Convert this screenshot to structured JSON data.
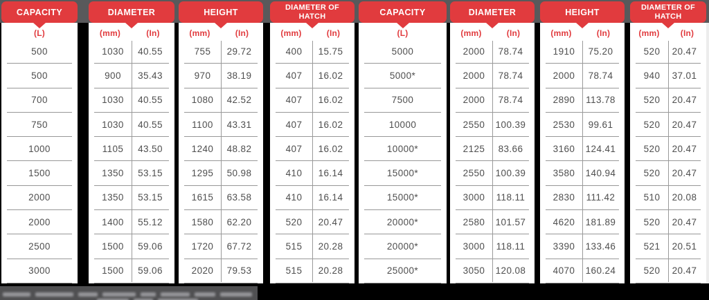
{
  "page": {
    "background_color": "#000000",
    "top_band_color": "#59595b",
    "accent_red": "#e13b3e",
    "card_color": "#ffffff",
    "value_text_color": "#4e4e4e",
    "separator_color": "#979797",
    "footer_bar_color": "#505052",
    "footer_text_legible": false
  },
  "tables": [
    {
      "title": "CAPACITY",
      "columns": [
        "(L)"
      ],
      "rows": [
        [
          "500"
        ],
        [
          "500"
        ],
        [
          "700"
        ],
        [
          "750"
        ],
        [
          "1000"
        ],
        [
          "1500"
        ],
        [
          "2000"
        ],
        [
          "2000"
        ],
        [
          "2500"
        ],
        [
          "3000"
        ]
      ]
    },
    {
      "title": "DIAMETER",
      "columns": [
        "(mm)",
        "(In)"
      ],
      "rows": [
        [
          "1030",
          "40.55"
        ],
        [
          "900",
          "35.43"
        ],
        [
          "1030",
          "40.55"
        ],
        [
          "1030",
          "40.55"
        ],
        [
          "1105",
          "43.50"
        ],
        [
          "1350",
          "53.15"
        ],
        [
          "1350",
          "53.15"
        ],
        [
          "1400",
          "55.12"
        ],
        [
          "1500",
          "59.06"
        ],
        [
          "1500",
          "59.06"
        ]
      ]
    },
    {
      "title": "HEIGHT",
      "columns": [
        "(mm)",
        "(In)"
      ],
      "rows": [
        [
          "755",
          "29.72"
        ],
        [
          "970",
          "38.19"
        ],
        [
          "1080",
          "42.52"
        ],
        [
          "1100",
          "43.31"
        ],
        [
          "1240",
          "48.82"
        ],
        [
          "1295",
          "50.98"
        ],
        [
          "1615",
          "63.58"
        ],
        [
          "1580",
          "62.20"
        ],
        [
          "1720",
          "67.72"
        ],
        [
          "2020",
          "79.53"
        ]
      ]
    },
    {
      "title": "DIAMETER OF HATCH",
      "columns": [
        "(mm)",
        "(In)"
      ],
      "rows": [
        [
          "400",
          "15.75"
        ],
        [
          "407",
          "16.02"
        ],
        [
          "407",
          "16.02"
        ],
        [
          "407",
          "16.02"
        ],
        [
          "407",
          "16.02"
        ],
        [
          "410",
          "16.14"
        ],
        [
          "410",
          "16.14"
        ],
        [
          "520",
          "20.47"
        ],
        [
          "515",
          "20.28"
        ],
        [
          "515",
          "20.28"
        ]
      ]
    },
    {
      "title": "CAPACITY",
      "columns": [
        "(L)"
      ],
      "rows": [
        [
          "5000"
        ],
        [
          "5000*"
        ],
        [
          "7500"
        ],
        [
          "10000"
        ],
        [
          "10000*"
        ],
        [
          "15000*"
        ],
        [
          "15000*"
        ],
        [
          "20000*"
        ],
        [
          "20000*"
        ],
        [
          "25000*"
        ]
      ]
    },
    {
      "title": "DIAMETER",
      "columns": [
        "(mm)",
        "(In)"
      ],
      "rows": [
        [
          "2000",
          "78.74"
        ],
        [
          "2000",
          "78.74"
        ],
        [
          "2000",
          "78.74"
        ],
        [
          "2550",
          "100.39"
        ],
        [
          "2125",
          "83.66"
        ],
        [
          "2550",
          "100.39"
        ],
        [
          "3000",
          "118.11"
        ],
        [
          "2580",
          "101.57"
        ],
        [
          "3000",
          "118.11"
        ],
        [
          "3050",
          "120.08"
        ]
      ]
    },
    {
      "title": "HEIGHT",
      "columns": [
        "(mm)",
        "(In)"
      ],
      "rows": [
        [
          "1910",
          "75.20"
        ],
        [
          "2000",
          "78.74"
        ],
        [
          "2890",
          "113.78"
        ],
        [
          "2530",
          "99.61"
        ],
        [
          "3160",
          "124.41"
        ],
        [
          "3580",
          "140.94"
        ],
        [
          "2830",
          "111.42"
        ],
        [
          "4620",
          "181.89"
        ],
        [
          "3390",
          "133.46"
        ],
        [
          "4070",
          "160.24"
        ]
      ]
    },
    {
      "title": "DIAMETER OF HATCH",
      "columns": [
        "(mm)",
        "(In)"
      ],
      "rows": [
        [
          "520",
          "20.47"
        ],
        [
          "940",
          "37.01"
        ],
        [
          "520",
          "20.47"
        ],
        [
          "520",
          "20.47"
        ],
        [
          "520",
          "20.47"
        ],
        [
          "520",
          "20.47"
        ],
        [
          "510",
          "20.08"
        ],
        [
          "520",
          "20.47"
        ],
        [
          "521",
          "20.51"
        ],
        [
          "520",
          "20.47"
        ]
      ]
    }
  ]
}
